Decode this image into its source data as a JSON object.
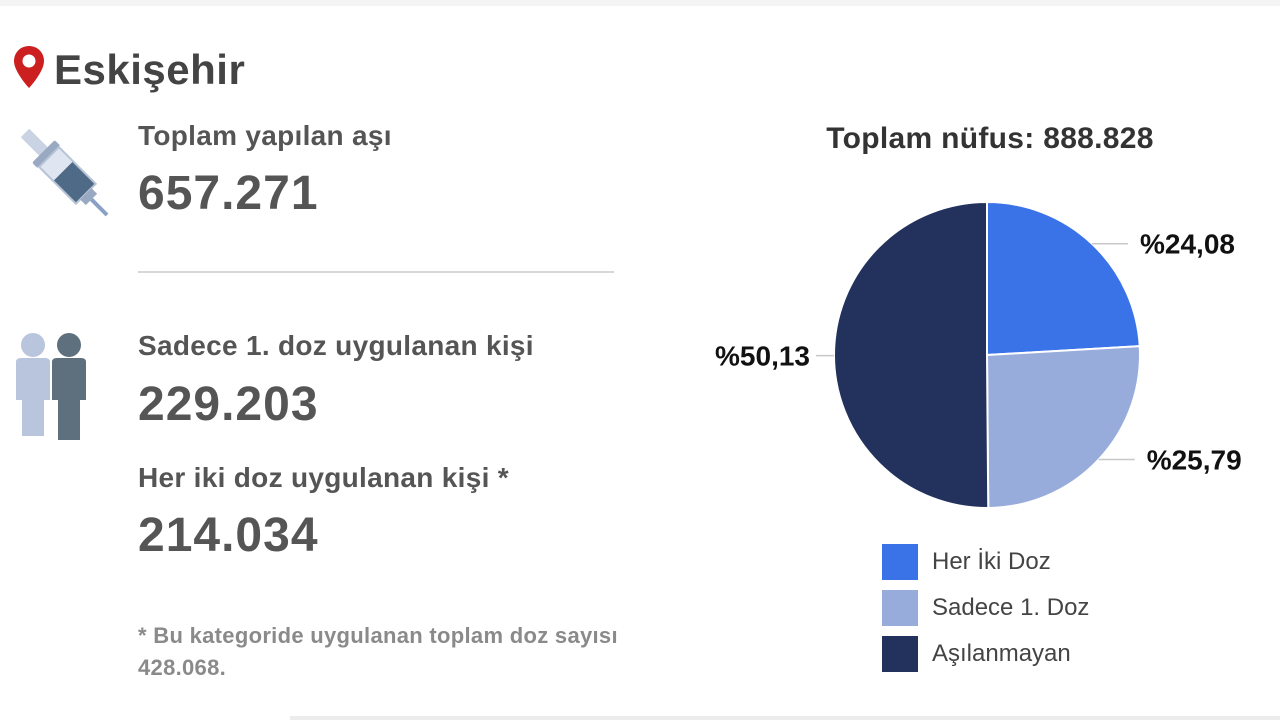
{
  "city": "Eskişehir",
  "stats": {
    "total_label": "Toplam yapılan aşı",
    "total_value": "657.271",
    "first_dose_label": "Sadece 1. doz uygulanan kişi",
    "first_dose_value": "229.203",
    "both_doses_label": "Her iki doz uygulanan kişi *",
    "both_doses_value": "214.034",
    "footnote": "* Bu kategoride uygulanan toplam doz sayısı 428.068."
  },
  "colors": {
    "pin": "#cc1f1f",
    "her_iki_doz": "#3a72e8",
    "sadece_1_doz": "#98acdc",
    "asilanmayan": "#22325c"
  },
  "icons": [
    "location-pin-icon",
    "syringe-icon",
    "people-icon"
  ],
  "chart_data": {
    "type": "pie",
    "title": "Toplam nüfus: 888.828",
    "slices": [
      {
        "label": "Her İki Doz",
        "value": 24.08,
        "text": "%24,08",
        "color": "#3a72e8"
      },
      {
        "label": "Sadece 1. Doz",
        "value": 25.79,
        "text": "%25,79",
        "color": "#98acdc"
      },
      {
        "label": "Aşılanmayan",
        "value": 50.13,
        "text": "%50,13",
        "color": "#22325c"
      }
    ],
    "legend": [
      "Her İki Doz",
      "Sadece 1. Doz",
      "Aşılanmayan"
    ],
    "legend_position": "bottom"
  }
}
